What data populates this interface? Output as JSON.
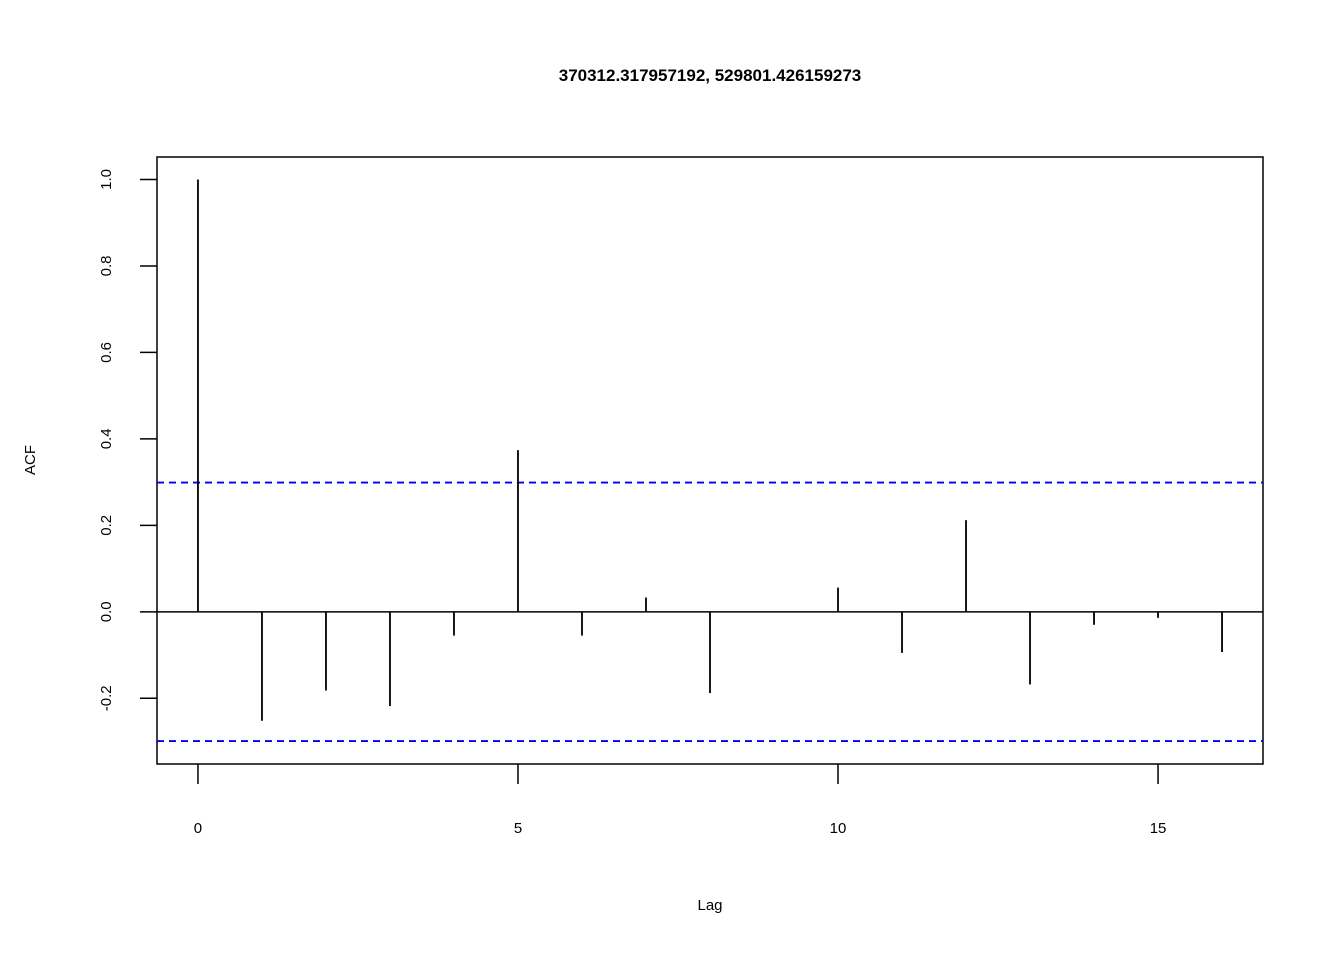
{
  "chart_data": {
    "type": "bar",
    "title": "370312.317957192, 529801.426159273",
    "xlabel": "Lag",
    "ylabel": "ACF",
    "x": [
      0,
      1,
      2,
      3,
      4,
      5,
      6,
      7,
      8,
      9,
      10,
      11,
      12,
      13,
      14,
      15,
      16
    ],
    "values": [
      1.0,
      -0.252,
      -0.182,
      -0.218,
      -0.055,
      0.374,
      -0.055,
      0.033,
      -0.188,
      0.0,
      0.056,
      -0.095,
      0.212,
      -0.168,
      -0.03,
      -0.014,
      -0.093
    ],
    "xlim": [
      -0.64,
      16.64
    ],
    "ylim": [
      -0.352,
      1.052
    ],
    "x_ticks": [
      0,
      5,
      10,
      15
    ],
    "x_tick_labels": [
      "0",
      "5",
      "10",
      "15"
    ],
    "y_ticks": [
      -0.2,
      0.0,
      0.2,
      0.4,
      0.6,
      0.8,
      1.0
    ],
    "y_tick_labels": [
      "-0.2",
      "0.0",
      "0.2",
      "0.4",
      "0.6",
      "0.8",
      "1.0"
    ],
    "confidence_bounds": [
      0.299,
      -0.299
    ],
    "zero_line": 0.0,
    "grid": false,
    "colors": {
      "bars": "#000000",
      "confidence": "#0000ee",
      "axes": "#000000"
    }
  }
}
